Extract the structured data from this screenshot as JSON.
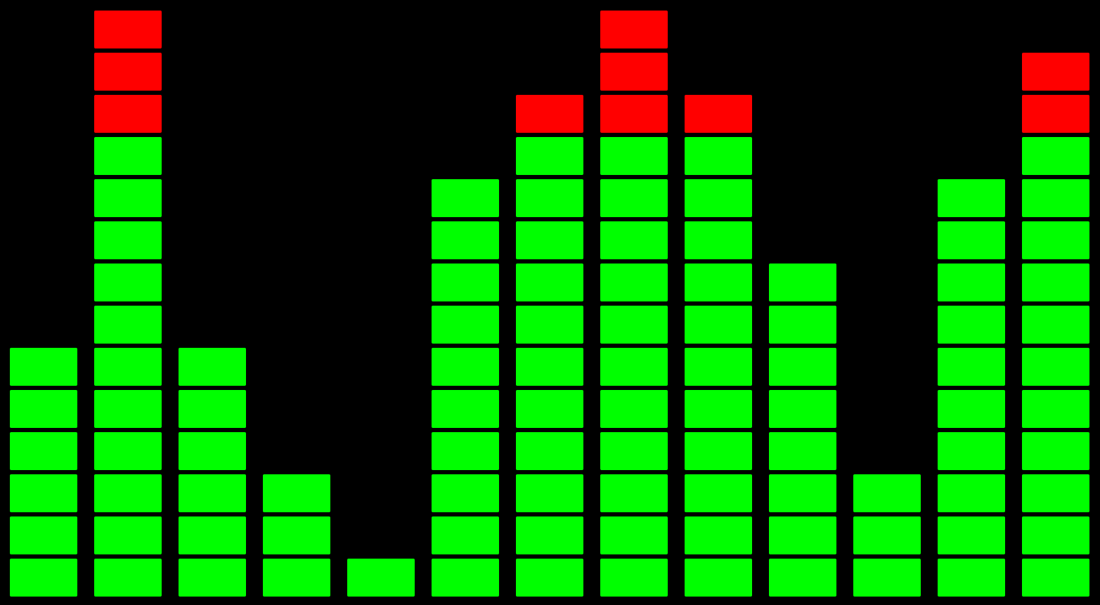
{
  "chart_data": {
    "type": "segmented-bar",
    "values": [
      6,
      14,
      6,
      3,
      1,
      10,
      12,
      14,
      12,
      8,
      3,
      10,
      13
    ],
    "ylim": [
      0,
      14
    ],
    "color": "#00ff00",
    "peak_color": "#ff0000",
    "peak_from": 11
  }
}
